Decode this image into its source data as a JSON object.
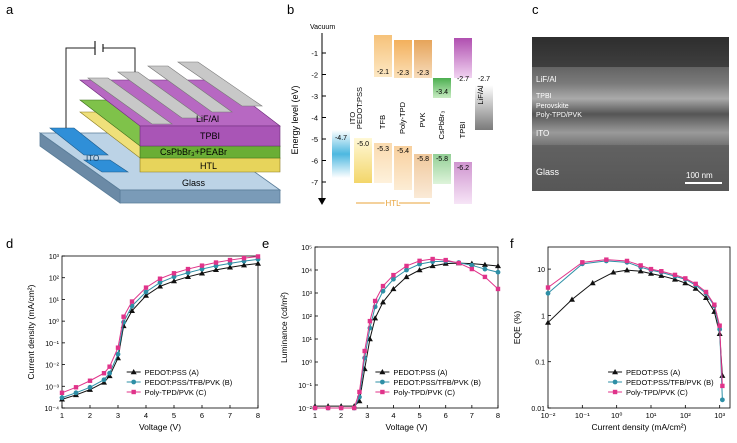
{
  "panels": {
    "a": {
      "letter": "a",
      "layers": [
        "LiF/Al",
        "TPBI",
        "CsPbBr₃+PEABr",
        "HTL",
        "Glass",
        "ITO"
      ]
    },
    "b": {
      "letter": "b",
      "vacuum": "Vacuum",
      "ylabel": "Energy level (eV)",
      "yticks": [
        "-1",
        "-2",
        "-3",
        "-4",
        "-5",
        "-6",
        "-7"
      ],
      "materials": [
        "ITO",
        "PEDOT:PSS",
        "TFB",
        "Poly-TPD",
        "PVK",
        "CsPbBr₃",
        "TPBI",
        "LiF/Al"
      ],
      "top_values": [
        "-2.1",
        "-2.3",
        "-2.3",
        "-3.4",
        "-2.7",
        "-2.7"
      ],
      "bottom_values": [
        "-4.7",
        "-5.0",
        "-5.3",
        "-5.4",
        "-5.8",
        "-5.8",
        "-6.2"
      ],
      "htl": "HTL"
    },
    "c": {
      "letter": "c",
      "labels": [
        "LiF/Al",
        "TPBI",
        "Perovskite",
        "Poly-TPD/PVK",
        "ITO",
        "Glass"
      ],
      "scale": "100 nm"
    }
  },
  "chart_data": [
    {
      "type": "line",
      "panel": "d",
      "xlabel": "Voltage (V)",
      "ylabel": "Current density (mA/cm²)",
      "yscale": "log",
      "xlim": [
        1,
        8
      ],
      "ylim": [
        0.0001,
        1000
      ],
      "xticks": [
        "1",
        "2",
        "3",
        "4",
        "5",
        "6",
        "7",
        "8"
      ],
      "yticks": [
        "10⁻⁴",
        "10⁻³",
        "10⁻²",
        "10⁻¹",
        "10⁰",
        "10¹",
        "10²",
        "10³"
      ],
      "x": [
        1,
        1.5,
        2,
        2.5,
        2.7,
        3,
        3.2,
        3.5,
        4,
        4.5,
        5,
        5.5,
        6,
        6.5,
        7,
        7.5,
        8
      ],
      "series": [
        {
          "name": "PEDOT:PSS (A)",
          "color": "#111111",
          "values": [
            0.00025,
            0.0004,
            0.0007,
            0.0015,
            0.003,
            0.02,
            0.6,
            3,
            15,
            40,
            70,
            110,
            160,
            230,
            300,
            380,
            450
          ]
        },
        {
          "name": "PEDOT:PSS/TFB/PVK (B)",
          "color": "#2e8fa6",
          "values": [
            0.0003,
            0.0005,
            0.0009,
            0.002,
            0.004,
            0.03,
            0.9,
            5,
            22,
            60,
            110,
            170,
            250,
            350,
            460,
            580,
            700
          ]
        },
        {
          "name": "Poly-TPD/PVK (C)",
          "color": "#e0338a",
          "values": [
            0.0005,
            0.0009,
            0.0018,
            0.004,
            0.008,
            0.06,
            1.6,
            8,
            35,
            90,
            160,
            250,
            360,
            500,
            650,
            800,
            950
          ]
        }
      ]
    },
    {
      "type": "line",
      "panel": "e",
      "xlabel": "Voltage (V)",
      "ylabel": "Luminance (cd/m²)",
      "yscale": "log",
      "xlim": [
        1,
        8
      ],
      "ylim": [
        0.01,
        100000
      ],
      "xticks": [
        "1",
        "2",
        "3",
        "4",
        "5",
        "6",
        "7",
        "8"
      ],
      "yticks": [
        "10⁻²",
        "10⁻¹",
        "10⁰",
        "10¹",
        "10²",
        "10³",
        "10⁴",
        "10⁵"
      ],
      "x": [
        1,
        1.5,
        2,
        2.5,
        2.7,
        2.9,
        3.1,
        3.3,
        3.6,
        4,
        4.5,
        5,
        5.5,
        6,
        6.5,
        7,
        7.5,
        8
      ],
      "series": [
        {
          "name": "PEDOT:PSS (A)",
          "color": "#111111",
          "values": [
            0.012,
            0.012,
            0.012,
            0.012,
            0.02,
            0.5,
            10,
            80,
            400,
            1500,
            5000,
            10000,
            15000,
            19000,
            20000,
            19000,
            17000,
            15000
          ]
        },
        {
          "name": "PEDOT:PSS/TFB/PVK (B)",
          "color": "#2e8fa6",
          "values": [
            0.01,
            0.01,
            0.01,
            0.01,
            0.03,
            1.5,
            30,
            250,
            1200,
            4000,
            10000,
            18000,
            23000,
            24000,
            21000,
            16000,
            11000,
            8000
          ]
        },
        {
          "name": "Poly-TPD/PVK (C)",
          "color": "#e0338a",
          "values": [
            0.01,
            0.01,
            0.01,
            0.01,
            0.05,
            3,
            60,
            450,
            2000,
            6000,
            15000,
            25000,
            30000,
            27000,
            20000,
            11000,
            5000,
            1500
          ]
        }
      ]
    },
    {
      "type": "line",
      "panel": "f",
      "xlabel": "Current density (mA/cm²)",
      "ylabel": "EQE (%)",
      "xscale": "log",
      "yscale": "log",
      "xlim": [
        0.01,
        2000
      ],
      "ylim": [
        0.01,
        30
      ],
      "xticks": [
        "10⁻²",
        "10⁻¹",
        "10⁰",
        "10¹",
        "10²",
        "10³"
      ],
      "yticks": [
        "0.01",
        "0.1",
        "1",
        "10"
      ],
      "series": [
        {
          "name": "PEDOT:PSS (A)",
          "color": "#111111",
          "x": [
            0.01,
            0.05,
            0.2,
            0.8,
            2,
            5,
            10,
            20,
            50,
            100,
            200,
            400,
            700,
            1000,
            1200
          ],
          "values": [
            0.7,
            2.2,
            5,
            8.5,
            9.5,
            9,
            8,
            7.2,
            6,
            5,
            3.8,
            2.4,
            1.2,
            0.4,
            0.05
          ]
        },
        {
          "name": "PEDOT:PSS/TFB/PVK (B)",
          "color": "#2e8fa6",
          "x": [
            0.01,
            0.1,
            0.5,
            2,
            5,
            10,
            20,
            50,
            100,
            200,
            400,
            700,
            1000,
            1200
          ],
          "values": [
            3,
            13,
            15,
            14,
            11,
            9.5,
            8.5,
            7,
            6,
            4.5,
            3,
            1.6,
            0.5,
            0.015
          ]
        },
        {
          "name": "Poly-TPD/PVK (C)",
          "color": "#e0338a",
          "x": [
            0.01,
            0.1,
            0.5,
            2,
            5,
            10,
            20,
            50,
            100,
            200,
            400,
            700,
            1000,
            1200
          ],
          "values": [
            4,
            14,
            16,
            15,
            12,
            10,
            9,
            7.5,
            6.3,
            4.8,
            3.2,
            1.7,
            0.6,
            0.03
          ]
        }
      ]
    }
  ]
}
